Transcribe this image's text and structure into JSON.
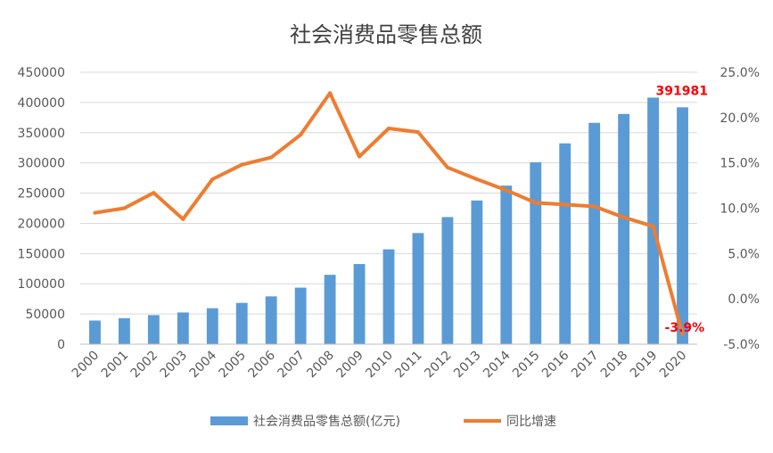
{
  "chart_data": {
    "type": "bar+line",
    "title": "社会消费品零售总额",
    "categories": [
      "2000",
      "2001",
      "2002",
      "2003",
      "2004",
      "2005",
      "2006",
      "2007",
      "2008",
      "2009",
      "2010",
      "2011",
      "2012",
      "2013",
      "2014",
      "2015",
      "2016",
      "2017",
      "2018",
      "2019",
      "2020"
    ],
    "series": [
      {
        "name": "社会消费品零售总额(亿元)",
        "type": "bar",
        "axis": "left",
        "color": "#5B9BD5",
        "values": [
          39106,
          43055,
          48136,
          52516,
          59501,
          68353,
          79145,
          93572,
          114830,
          132678,
          156998,
          183919,
          210307,
          237810,
          262394,
          300931,
          332316,
          366262,
          380987,
          408017,
          391981
        ]
      },
      {
        "name": "同比增速",
        "type": "line",
        "axis": "right",
        "color": "#ED7D31",
        "values": [
          9.5,
          10.0,
          11.7,
          8.8,
          13.2,
          14.8,
          15.6,
          18.1,
          22.7,
          15.7,
          18.8,
          18.4,
          14.5,
          13.2,
          12.0,
          10.6,
          10.4,
          10.2,
          9.0,
          8.0,
          -3.9
        ]
      }
    ],
    "ylim_left": [
      0,
      450000
    ],
    "yticks_left": [
      "0",
      "50000",
      "100000",
      "150000",
      "200000",
      "250000",
      "300000",
      "350000",
      "400000",
      "450000"
    ],
    "ylim_right": [
      -5.0,
      25.0
    ],
    "yticks_right": [
      "-5.0%",
      "0.0%",
      "5.0%",
      "10.0%",
      "15.0%",
      "20.0%",
      "25.0%"
    ],
    "grid": true,
    "legend_position": "bottom",
    "annotations": [
      {
        "text": "391981",
        "category": "2020",
        "series": "bar",
        "color": "#FF0000"
      },
      {
        "text": "-3.9%",
        "category": "2020",
        "series": "line",
        "color": "#FF0000"
      }
    ]
  }
}
